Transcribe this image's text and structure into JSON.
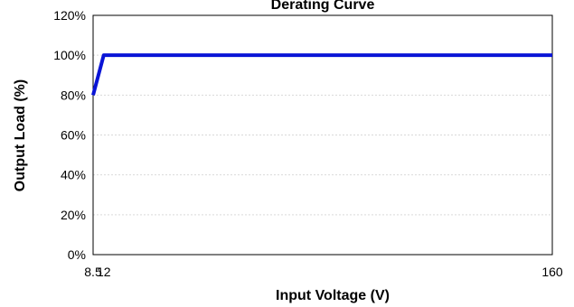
{
  "chart_data": {
    "type": "line",
    "title": "Derating Curve",
    "xlabel": "Input Voltage (V)",
    "ylabel": "Output Load (%)",
    "xlim": [
      8.5,
      160
    ],
    "ylim": [
      0,
      120
    ],
    "x_ticks": [
      {
        "value": 8.5,
        "label": "8.5"
      },
      {
        "value": 12,
        "label": "12"
      },
      {
        "value": 160,
        "label": "160"
      }
    ],
    "y_ticks": [
      {
        "value": 0,
        "label": "0%"
      },
      {
        "value": 20,
        "label": "20%"
      },
      {
        "value": 40,
        "label": "40%"
      },
      {
        "value": 60,
        "label": "60%"
      },
      {
        "value": 80,
        "label": "80%"
      },
      {
        "value": 100,
        "label": "100%"
      },
      {
        "value": 120,
        "label": "120%"
      }
    ],
    "grid": true,
    "series": [
      {
        "color": "#0a14d6",
        "points": [
          {
            "x": 8.5,
            "y": 80
          },
          {
            "x": 12,
            "y": 100
          },
          {
            "x": 160,
            "y": 100
          }
        ]
      }
    ]
  }
}
